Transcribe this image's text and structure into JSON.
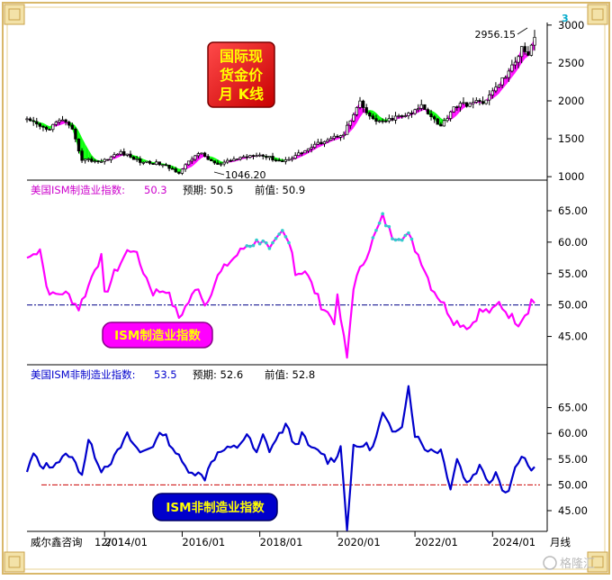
{
  "colors": {
    "frame": "#d9b86a",
    "candle": "#000000",
    "ma_up": "#ff00ff",
    "ma_down": "#00ff00",
    "ism_mfg": "#ff00ff",
    "ism_mfg_hi": "#33cccc",
    "ism_non": "#0000cc",
    "guide_purple": "#000088",
    "guide_red": "#cc0000",
    "badge_red": "#ff0000",
    "badge_text": "#ffff00",
    "badge_pink": "#ff00ff",
    "badge_blue": "#0000cc"
  },
  "icons": [
    "corner-ornament-icon",
    "publisher-watermark-logo"
  ],
  "texts": {
    "gold_badge": [
      "国际现",
      "货金价",
      "月 K线"
    ],
    "gold_max_label": "2956.15",
    "gold_min_label": "1046.20",
    "marker": "3",
    "mfg_header_name": "美国ISM制造业指数:",
    "mfg_header_value": "50.3",
    "mfg_header_forecast": "预期: 50.5",
    "mfg_header_previous": "前值: 50.9",
    "mfg_badge": "ISM制造业指数",
    "non_header_name": "美国ISM非制造业指数:",
    "non_header_value": "53.5",
    "non_header_forecast": "预期: 52.6",
    "non_header_previous": "前值: 52.8",
    "non_badge": "ISM非制造业指数",
    "source": "威尔鑫咨询",
    "first_tick": "12/01",
    "period": "月线",
    "watermark": "格隆汇"
  },
  "chart_data": [
    {
      "type": "candlestick",
      "panel": "gold",
      "x_ticks": [
        "2014/01",
        "2016/01",
        "2018/01",
        "2020/01",
        "2022/01",
        "2024/01"
      ],
      "y_ticks": [
        1000,
        1500,
        2000,
        2500,
        3000
      ],
      "ylim": [
        990,
        3010
      ],
      "annotations": [
        {
          "x": "2025/02",
          "value": 2956.15
        },
        {
          "x": "2015/12",
          "value": 1046.2
        }
      ],
      "ma_up_color": "#ff00ff",
      "ma_down_color": "#00ff00",
      "month_closes": [
        {
          "x": "2012/01",
          "close": 1740
        },
        {
          "x": "2012/07",
          "close": 1620
        },
        {
          "x": "2012/12",
          "close": 1760
        },
        {
          "x": "2013/03",
          "close": 1600
        },
        {
          "x": "2013/06",
          "close": 1230
        },
        {
          "x": "2013/12",
          "close": 1200
        },
        {
          "x": "2014/06",
          "close": 1320
        },
        {
          "x": "2014/12",
          "close": 1200
        },
        {
          "x": "2015/06",
          "close": 1170
        },
        {
          "x": "2015/12",
          "close": 1060
        },
        {
          "x": "2016/06",
          "close": 1320
        },
        {
          "x": "2016/12",
          "close": 1150
        },
        {
          "x": "2017/06",
          "close": 1240
        },
        {
          "x": "2017/12",
          "close": 1300
        },
        {
          "x": "2018/08",
          "close": 1200
        },
        {
          "x": "2018/12",
          "close": 1280
        },
        {
          "x": "2019/06",
          "close": 1410
        },
        {
          "x": "2019/09",
          "close": 1480
        },
        {
          "x": "2019/12",
          "close": 1520
        },
        {
          "x": "2020/03",
          "close": 1580
        },
        {
          "x": "2020/08",
          "close": 1970
        },
        {
          "x": "2020/11",
          "close": 1780
        },
        {
          "x": "2021/03",
          "close": 1710
        },
        {
          "x": "2021/06",
          "close": 1770
        },
        {
          "x": "2021/12",
          "close": 1830
        },
        {
          "x": "2022/03",
          "close": 1940
        },
        {
          "x": "2022/06",
          "close": 1810
        },
        {
          "x": "2022/09",
          "close": 1660
        },
        {
          "x": "2023/01",
          "close": 1930
        },
        {
          "x": "2023/05",
          "close": 1960
        },
        {
          "x": "2023/10",
          "close": 1990
        },
        {
          "x": "2023/12",
          "close": 2060
        },
        {
          "x": "2024/03",
          "close": 2230
        },
        {
          "x": "2024/05",
          "close": 2330
        },
        {
          "x": "2024/08",
          "close": 2500
        },
        {
          "x": "2024/10",
          "close": 2740
        },
        {
          "x": "2024/12",
          "close": 2620
        },
        {
          "x": "2025/02",
          "close": 2860
        }
      ]
    },
    {
      "type": "line",
      "panel": "ism_manufacturing",
      "series_name": "美国ISM制造业指数",
      "x_ticks": [
        "2014/01",
        "2016/01",
        "2018/01",
        "2020/01",
        "2022/01",
        "2024/01"
      ],
      "y_ticks": [
        45,
        50,
        55,
        60,
        65
      ],
      "ylim": [
        41.5,
        67
      ],
      "reference_line": 50,
      "latest": 50.3,
      "forecast": 50.5,
      "previous": 50.9,
      "points": [
        {
          "x": "2012/01",
          "value": 57.5
        },
        {
          "x": "2012/03",
          "value": 58.0
        },
        {
          "x": "2012/05",
          "value": 59.2
        },
        {
          "x": "2012/07",
          "value": 53.0
        },
        {
          "x": "2012/09",
          "value": 51.5
        },
        {
          "x": "2012/12",
          "value": 52.0
        },
        {
          "x": "2013/02",
          "value": 51.5
        },
        {
          "x": "2013/05",
          "value": 49.5
        },
        {
          "x": "2013/08",
          "value": 53.0
        },
        {
          "x": "2013/10",
          "value": 56.0
        },
        {
          "x": "2013/12",
          "value": 57.5
        },
        {
          "x": "2014/01",
          "value": 51.5
        },
        {
          "x": "2014/04",
          "value": 55.0
        },
        {
          "x": "2014/08",
          "value": 58.5
        },
        {
          "x": "2014/10",
          "value": 59.0
        },
        {
          "x": "2014/12",
          "value": 56.5
        },
        {
          "x": "2015/04",
          "value": 52.0
        },
        {
          "x": "2015/08",
          "value": 52.5
        },
        {
          "x": "2015/12",
          "value": 48.0
        },
        {
          "x": "2016/03",
          "value": 50.5
        },
        {
          "x": "2016/06",
          "value": 53.0
        },
        {
          "x": "2016/08",
          "value": 50.0
        },
        {
          "x": "2016/12",
          "value": 54.5
        },
        {
          "x": "2017/03",
          "value": 56.5
        },
        {
          "x": "2017/09",
          "value": 59.5
        },
        {
          "x": "2017/12",
          "value": 60.0
        },
        {
          "x": "2018/02",
          "value": 60.5
        },
        {
          "x": "2018/04",
          "value": 58.5
        },
        {
          "x": "2018/08",
          "value": 61.5
        },
        {
          "x": "2018/11",
          "value": 59.0
        },
        {
          "x": "2018/12",
          "value": 55.0
        },
        {
          "x": "2019/03",
          "value": 55.5
        },
        {
          "x": "2019/08",
          "value": 50.0
        },
        {
          "x": "2019/12",
          "value": 47.5
        },
        {
          "x": "2020/01",
          "value": 51.0
        },
        {
          "x": "2020/04",
          "value": 41.5
        },
        {
          "x": "2020/06",
          "value": 53.0
        },
        {
          "x": "2020/10",
          "value": 58.0
        },
        {
          "x": "2021/03",
          "value": 64.0
        },
        {
          "x": "2021/06",
          "value": 61.0
        },
        {
          "x": "2021/11",
          "value": 61.0
        },
        {
          "x": "2022/03",
          "value": 57.0
        },
        {
          "x": "2022/06",
          "value": 53.0
        },
        {
          "x": "2022/10",
          "value": 50.0
        },
        {
          "x": "2023/01",
          "value": 47.5
        },
        {
          "x": "2023/06",
          "value": 46.5
        },
        {
          "x": "2023/09",
          "value": 49.0
        },
        {
          "x": "2024/01",
          "value": 49.0
        },
        {
          "x": "2024/03",
          "value": 50.3
        },
        {
          "x": "2024/06",
          "value": 48.5
        },
        {
          "x": "2024/09",
          "value": 47.2
        },
        {
          "x": "2024/12",
          "value": 49.3
        },
        {
          "x": "2025/01",
          "value": 50.9
        },
        {
          "x": "2025/02",
          "value": 50.3
        }
      ]
    },
    {
      "type": "line",
      "panel": "ism_non_manufacturing",
      "series_name": "美国ISM非制造业指数",
      "x_ticks": [
        "2014/01",
        "2016/01",
        "2018/01",
        "2020/01",
        "2022/01",
        "2024/01"
      ],
      "y_ticks": [
        45,
        50,
        55,
        60,
        65
      ],
      "ylim": [
        41.5,
        70
      ],
      "reference_line": 50,
      "latest": 53.5,
      "forecast": 52.6,
      "previous": 52.8,
      "points": [
        {
          "x": "2012/01",
          "value": 52.5
        },
        {
          "x": "2012/03",
          "value": 56.0
        },
        {
          "x": "2012/05",
          "value": 53.7
        },
        {
          "x": "2012/08",
          "value": 53.7
        },
        {
          "x": "2012/11",
          "value": 54.7
        },
        {
          "x": "2013/02",
          "value": 56.0
        },
        {
          "x": "2013/06",
          "value": 52.2
        },
        {
          "x": "2013/08",
          "value": 58.6
        },
        {
          "x": "2013/12",
          "value": 53.0
        },
        {
          "x": "2014/04",
          "value": 55.2
        },
        {
          "x": "2014/08",
          "value": 59.6
        },
        {
          "x": "2014/12",
          "value": 56.2
        },
        {
          "x": "2015/04",
          "value": 57.8
        },
        {
          "x": "2015/07",
          "value": 60.3
        },
        {
          "x": "2015/12",
          "value": 55.3
        },
        {
          "x": "2016/02",
          "value": 53.4
        },
        {
          "x": "2016/08",
          "value": 51.4
        },
        {
          "x": "2016/10",
          "value": 54.8
        },
        {
          "x": "2017/01",
          "value": 56.5
        },
        {
          "x": "2017/06",
          "value": 57.4
        },
        {
          "x": "2017/09",
          "value": 59.8
        },
        {
          "x": "2017/12",
          "value": 55.9
        },
        {
          "x": "2018/02",
          "value": 59.5
        },
        {
          "x": "2018/04",
          "value": 56.8
        },
        {
          "x": "2018/09",
          "value": 61.6
        },
        {
          "x": "2018/12",
          "value": 57.6
        },
        {
          "x": "2019/02",
          "value": 59.7
        },
        {
          "x": "2019/05",
          "value": 56.9
        },
        {
          "x": "2019/08",
          "value": 56.4
        },
        {
          "x": "2019/10",
          "value": 54.7
        },
        {
          "x": "2019/12",
          "value": 55.0
        },
        {
          "x": "2020/02",
          "value": 57.3
        },
        {
          "x": "2020/04",
          "value": 41.8
        },
        {
          "x": "2020/06",
          "value": 57.1
        },
        {
          "x": "2020/09",
          "value": 57.8
        },
        {
          "x": "2020/12",
          "value": 57.2
        },
        {
          "x": "2021/03",
          "value": 63.7
        },
        {
          "x": "2021/06",
          "value": 60.1
        },
        {
          "x": "2021/09",
          "value": 61.9
        },
        {
          "x": "2021/11",
          "value": 69.1
        },
        {
          "x": "2022/01",
          "value": 59.9
        },
        {
          "x": "2022/04",
          "value": 57.1
        },
        {
          "x": "2022/07",
          "value": 56.7
        },
        {
          "x": "2022/09",
          "value": 56.7
        },
        {
          "x": "2022/12",
          "value": 49.6
        },
        {
          "x": "2023/02",
          "value": 55.1
        },
        {
          "x": "2023/05",
          "value": 50.3
        },
        {
          "x": "2023/09",
          "value": 53.6
        },
        {
          "x": "2023/12",
          "value": 50.6
        },
        {
          "x": "2024/02",
          "value": 52.6
        },
        {
          "x": "2024/04",
          "value": 49.4
        },
        {
          "x": "2024/06",
          "value": 48.8
        },
        {
          "x": "2024/07",
          "value": 51.4
        },
        {
          "x": "2024/09",
          "value": 54.9
        },
        {
          "x": "2024/10",
          "value": 56.0
        },
        {
          "x": "2024/12",
          "value": 54.0
        },
        {
          "x": "2025/01",
          "value": 52.8
        },
        {
          "x": "2025/02",
          "value": 53.5
        }
      ]
    }
  ]
}
